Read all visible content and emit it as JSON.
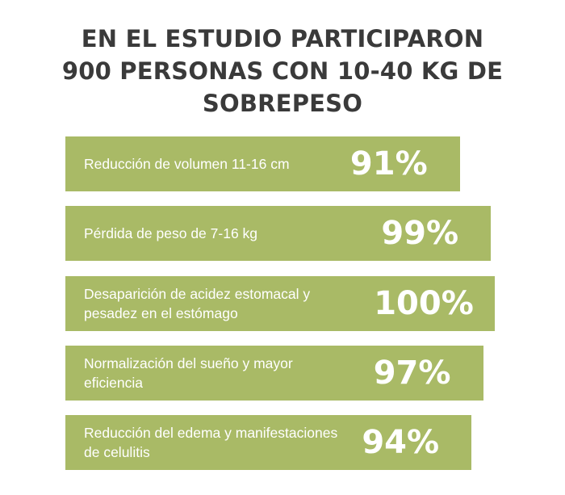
{
  "title": {
    "line1": "EN EL ESTUDIO PARTICIPARON",
    "line2": "900 PERSONAS CON 10-40 KG DE",
    "line3": "SOBREPESO"
  },
  "colors": {
    "bar": "#a9ba66",
    "title": "#3a3a3a",
    "bar_text": "#ffffff"
  },
  "chart_data": {
    "type": "bar",
    "orientation": "horizontal",
    "categories": [
      "Reducción de volumen 11-16 cm",
      "Pérdida de peso de 7-16 kg",
      "Desaparición de acidez estomacal y pesadez en el estómago",
      "Normalización del sueño y mayor eficiencia",
      "Reducción del edema y manifestaciones de celulitis"
    ],
    "values": [
      91,
      99,
      100,
      97,
      94
    ],
    "value_labels": [
      "91%",
      "99%",
      "100%",
      "97%",
      "94%"
    ],
    "grid": false,
    "legend": "none"
  },
  "bars": [
    {
      "label": "Reducción de volumen 11-16 cm",
      "value_label": "91%"
    },
    {
      "label": "Pérdida de peso de 7-16 kg",
      "value_label": "99%"
    },
    {
      "label": "Desaparición de acidez estomacal y pesadez en el estómago",
      "value_label": "100%"
    },
    {
      "label": "Normalización del sueño y mayor eficiencia",
      "value_label": "97%"
    },
    {
      "label": "Reducción del edema y manifestaciones de celulitis",
      "value_label": "94%"
    }
  ]
}
